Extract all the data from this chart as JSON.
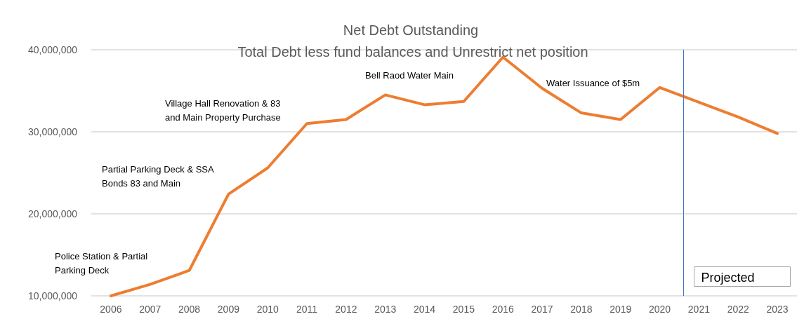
{
  "chart_data": {
    "type": "line",
    "title": "Net Debt Outstanding",
    "subtitle": "Total Debt less fund balances and Unrestrict net position",
    "x": [
      2006,
      2007,
      2008,
      2009,
      2010,
      2011,
      2012,
      2013,
      2014,
      2015,
      2016,
      2017,
      2018,
      2019,
      2020,
      2021,
      2022,
      2023
    ],
    "xlim": [
      2005.5,
      2023.5
    ],
    "xticks": [
      2006,
      2007,
      2008,
      2009,
      2010,
      2011,
      2012,
      2013,
      2014,
      2015,
      2016,
      2017,
      2018,
      2019,
      2020,
      2021,
      2022,
      2023
    ],
    "series": [
      {
        "color": "#ed7d31",
        "values": [
          10000000,
          11400000,
          13100000,
          22400000,
          25600000,
          31000000,
          31500000,
          34500000,
          33300000,
          33700000,
          39100000,
          35300000,
          32300000,
          31500000,
          35400000,
          33600000,
          31800000,
          29800000
        ]
      }
    ],
    "ylim": [
      10000000,
      40000000
    ],
    "yticks": [
      {
        "value": 10000000,
        "label": "10,000,000"
      },
      {
        "value": 20000000,
        "label": "20,000,000"
      },
      {
        "value": 30000000,
        "label": "30,000,000"
      },
      {
        "value": 40000000,
        "label": "40,000,000"
      }
    ],
    "grid": "y",
    "marker": "none",
    "line_style": "solid",
    "ref_lines": [
      {
        "axis": "x",
        "value": 2020.6,
        "label": "Projected",
        "color": "#4472c4"
      }
    ],
    "annotations": [
      "Police Station & Partial\nParking Deck",
      "Partial Parking Deck & SSA\nBonds 83 and Main",
      "Village Hall Renovation & 83\nand Main Property Purchase",
      "Bell Raod Water Main",
      "Water Issuance of $5m"
    ]
  }
}
